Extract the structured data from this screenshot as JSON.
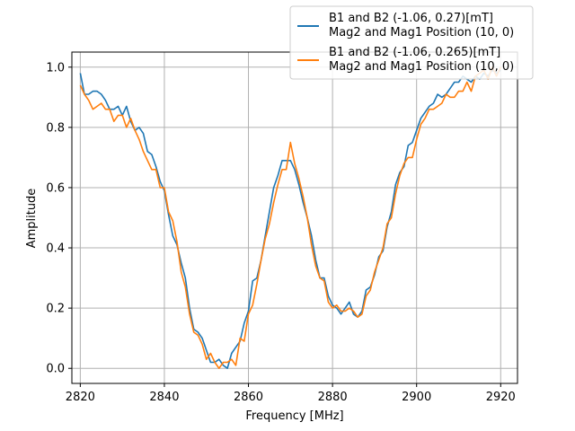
{
  "chart_data": {
    "type": "line",
    "xlabel": "Frequency [MHz]",
    "ylabel": "Amplitude",
    "xlim": [
      2818,
      2924
    ],
    "ylim": [
      -0.05,
      1.05
    ],
    "xticks": [
      2820,
      2840,
      2860,
      2880,
      2900,
      2920
    ],
    "yticks": [
      0.0,
      0.2,
      0.4,
      0.6,
      0.8,
      1.0
    ],
    "xtick_labels": [
      "2820",
      "2840",
      "2860",
      "2880",
      "2900",
      "2920"
    ],
    "ytick_labels": [
      "0.0",
      "0.2",
      "0.4",
      "0.6",
      "0.8",
      "1.0"
    ],
    "grid": true,
    "legend_position": "top-right",
    "x": [
      2820,
      2821,
      2822,
      2823,
      2824,
      2825,
      2826,
      2827,
      2828,
      2829,
      2830,
      2831,
      2832,
      2833,
      2834,
      2835,
      2836,
      2837,
      2838,
      2839,
      2840,
      2841,
      2842,
      2843,
      2844,
      2845,
      2846,
      2847,
      2848,
      2849,
      2850,
      2851,
      2852,
      2853,
      2854,
      2855,
      2856,
      2857,
      2858,
      2859,
      2860,
      2861,
      2862,
      2863,
      2864,
      2865,
      2866,
      2867,
      2868,
      2869,
      2870,
      2871,
      2872,
      2873,
      2874,
      2875,
      2876,
      2877,
      2878,
      2879,
      2880,
      2881,
      2882,
      2883,
      2884,
      2885,
      2886,
      2887,
      2888,
      2889,
      2890,
      2891,
      2892,
      2893,
      2894,
      2895,
      2896,
      2897,
      2898,
      2899,
      2900,
      2901,
      2902,
      2903,
      2904,
      2905,
      2906,
      2907,
      2908,
      2909,
      2910,
      2911,
      2912,
      2913,
      2914,
      2915,
      2916,
      2917,
      2918,
      2919,
      2920
    ],
    "series": [
      {
        "name": "B1 and B2 (-1.06, 0.27)[mT]\nMag2 and Mag1 Position (10, 0)",
        "color": "#1f77b4",
        "values": [
          0.98,
          0.91,
          0.91,
          0.92,
          0.92,
          0.91,
          0.89,
          0.86,
          0.86,
          0.87,
          0.84,
          0.87,
          0.82,
          0.79,
          0.8,
          0.78,
          0.72,
          0.71,
          0.67,
          0.62,
          0.59,
          0.51,
          0.44,
          0.41,
          0.35,
          0.3,
          0.2,
          0.13,
          0.12,
          0.1,
          0.06,
          0.02,
          0.02,
          0.03,
          0.01,
          0.0,
          0.05,
          0.07,
          0.09,
          0.15,
          0.19,
          0.29,
          0.3,
          0.36,
          0.44,
          0.52,
          0.6,
          0.64,
          0.69,
          0.69,
          0.69,
          0.66,
          0.61,
          0.55,
          0.5,
          0.44,
          0.36,
          0.3,
          0.3,
          0.24,
          0.21,
          0.2,
          0.18,
          0.2,
          0.22,
          0.18,
          0.17,
          0.19,
          0.26,
          0.27,
          0.31,
          0.37,
          0.39,
          0.47,
          0.52,
          0.61,
          0.65,
          0.67,
          0.74,
          0.75,
          0.79,
          0.83,
          0.85,
          0.87,
          0.88,
          0.91,
          0.9,
          0.91,
          0.93,
          0.95,
          0.95,
          0.97,
          0.96,
          0.95,
          0.97,
          0.96,
          0.98,
          0.97,
          0.99,
          0.98,
          0.99
        ]
      },
      {
        "name": "B1 and B2 (-1.06, 0.265)[mT]\nMag2 and Mag1 Position (10, 0)",
        "color": "#ff7f0e",
        "values": [
          0.94,
          0.91,
          0.89,
          0.86,
          0.87,
          0.88,
          0.86,
          0.86,
          0.82,
          0.84,
          0.84,
          0.8,
          0.83,
          0.79,
          0.76,
          0.72,
          0.69,
          0.66,
          0.66,
          0.6,
          0.6,
          0.52,
          0.49,
          0.42,
          0.32,
          0.27,
          0.18,
          0.12,
          0.11,
          0.08,
          0.03,
          0.05,
          0.02,
          0.0,
          0.02,
          0.02,
          0.03,
          0.01,
          0.1,
          0.09,
          0.18,
          0.21,
          0.28,
          0.36,
          0.43,
          0.48,
          0.55,
          0.61,
          0.66,
          0.66,
          0.75,
          0.68,
          0.63,
          0.57,
          0.5,
          0.41,
          0.34,
          0.3,
          0.29,
          0.22,
          0.2,
          0.21,
          0.19,
          0.19,
          0.2,
          0.19,
          0.17,
          0.18,
          0.24,
          0.26,
          0.32,
          0.36,
          0.4,
          0.48,
          0.5,
          0.58,
          0.64,
          0.68,
          0.7,
          0.7,
          0.76,
          0.81,
          0.83,
          0.86,
          0.86,
          0.87,
          0.88,
          0.91,
          0.9,
          0.9,
          0.92,
          0.92,
          0.95,
          0.92,
          0.97,
          0.98,
          0.99,
          0.96,
          1.0,
          0.97,
          1.0
        ]
      }
    ]
  }
}
